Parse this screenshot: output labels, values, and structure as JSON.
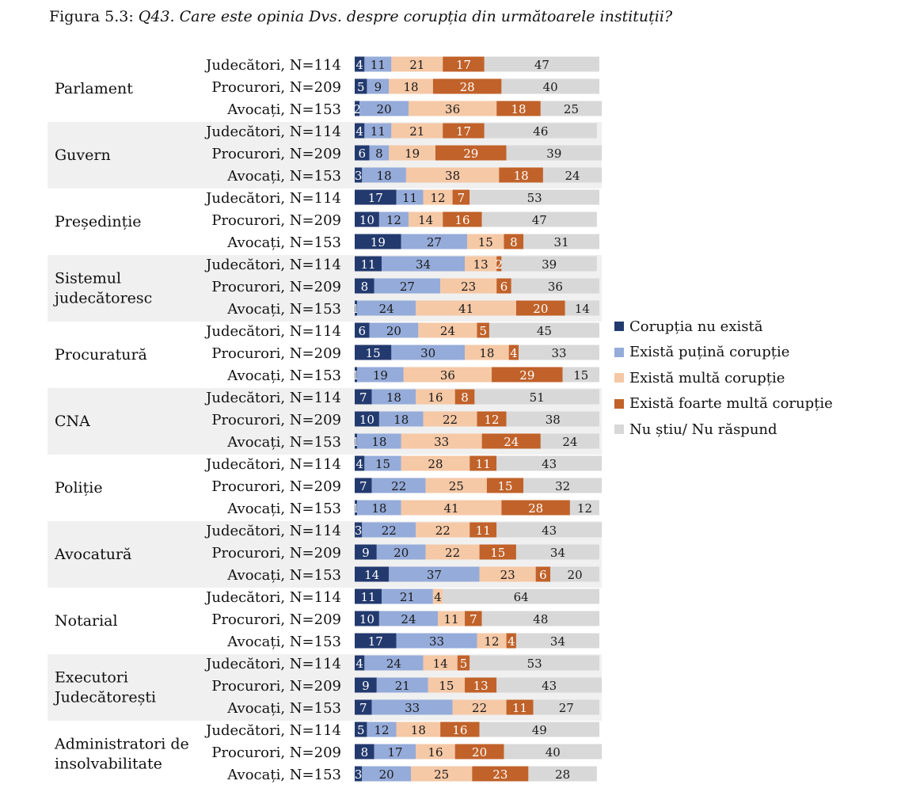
{
  "title": {
    "number": "Figura 5.3:",
    "question": "Q43. Care este opinia Dvs. despre corupția din următoarele instituții?"
  },
  "colors": [
    "#233a6e",
    "#95abd9",
    "#f5c8a6",
    "#c0622a",
    "#d8d8d8"
  ],
  "legend": [
    {
      "label": "Corupția nu există",
      "color": "#233a6e"
    },
    {
      "label": "Există puțină corupție",
      "color": "#95abd9"
    },
    {
      "label": "Există multă corupție",
      "color": "#f5c8a6"
    },
    {
      "label": "Există foarte multă corupție",
      "color": "#c0622a"
    },
    {
      "label": "Nu știu/ Nu răspund",
      "color": "#d8d8d8"
    }
  ],
  "chart_data": {
    "type": "bar",
    "orientation": "horizontal",
    "stacked": true,
    "unit": "%",
    "series_names": [
      "Corupția nu există",
      "Există puțină corupție",
      "Există multă corupție",
      "Există foarte multă corupție",
      "Nu știu/ Nu răspund"
    ],
    "groups": [
      {
        "name": [
          "Parlament"
        ],
        "rows": [
          {
            "label": "Judecători, N=114",
            "values": [
              4,
              11,
              21,
              17,
              47
            ]
          },
          {
            "label": "Procurori, N=209",
            "values": [
              5,
              9,
              18,
              28,
              40
            ]
          },
          {
            "label": "Avocați, N=153",
            "values": [
              2,
              20,
              36,
              18,
              25
            ]
          }
        ]
      },
      {
        "name": [
          "Guvern"
        ],
        "rows": [
          {
            "label": "Judecători, N=114",
            "values": [
              4,
              11,
              21,
              17,
              46
            ]
          },
          {
            "label": "Procurori, N=209",
            "values": [
              6,
              8,
              19,
              29,
              39
            ]
          },
          {
            "label": "Avocați, N=153",
            "values": [
              3,
              18,
              38,
              18,
              24
            ]
          }
        ]
      },
      {
        "name": [
          "Președinție"
        ],
        "rows": [
          {
            "label": "Judecători, N=114",
            "values": [
              17,
              11,
              12,
              7,
              53
            ]
          },
          {
            "label": "Procurori, N=209",
            "values": [
              10,
              12,
              14,
              16,
              47
            ]
          },
          {
            "label": "Avocați, N=153",
            "values": [
              19,
              27,
              15,
              8,
              31
            ]
          }
        ]
      },
      {
        "name": [
          "Sistemul",
          "judecătoresc"
        ],
        "rows": [
          {
            "label": "Judecători, N=114",
            "values": [
              11,
              34,
              13,
              2,
              39
            ]
          },
          {
            "label": "Procurori, N=209",
            "values": [
              8,
              27,
              23,
              6,
              36
            ]
          },
          {
            "label": "Avocați, N=153",
            "values": [
              1,
              24,
              41,
              20,
              14
            ]
          }
        ]
      },
      {
        "name": [
          "Procuratură"
        ],
        "rows": [
          {
            "label": "Judecători, N=114",
            "values": [
              6,
              20,
              24,
              5,
              45
            ]
          },
          {
            "label": "Procurori, N=209",
            "values": [
              15,
              30,
              18,
              4,
              33
            ]
          },
          {
            "label": "Avocați, N=153",
            "values": [
              1,
              19,
              36,
              29,
              15
            ]
          }
        ]
      },
      {
        "name": [
          "CNA"
        ],
        "rows": [
          {
            "label": "Judecători, N=114",
            "values": [
              7,
              18,
              16,
              8,
              51
            ]
          },
          {
            "label": "Procurori, N=209",
            "values": [
              10,
              18,
              22,
              12,
              38
            ]
          },
          {
            "label": "Avocați, N=153",
            "values": [
              1,
              18,
              33,
              24,
              24
            ]
          }
        ]
      },
      {
        "name": [
          "Poliție"
        ],
        "rows": [
          {
            "label": "Judecători, N=114",
            "values": [
              4,
              15,
              28,
              11,
              43
            ]
          },
          {
            "label": "Procurori, N=209",
            "values": [
              7,
              22,
              25,
              15,
              32
            ]
          },
          {
            "label": "Avocați, N=153",
            "values": [
              1,
              18,
              41,
              28,
              12
            ]
          }
        ]
      },
      {
        "name": [
          "Avocatură"
        ],
        "rows": [
          {
            "label": "Judecători, N=114",
            "values": [
              3,
              22,
              22,
              11,
              43
            ]
          },
          {
            "label": "Procurori, N=209",
            "values": [
              9,
              20,
              22,
              15,
              34
            ]
          },
          {
            "label": "Avocați, N=153",
            "values": [
              14,
              37,
              23,
              6,
              20
            ]
          }
        ]
      },
      {
        "name": [
          "Notarial"
        ],
        "rows": [
          {
            "label": "Judecători, N=114",
            "values": [
              11,
              21,
              4,
              0,
              64
            ]
          },
          {
            "label": "Procurori, N=209",
            "values": [
              10,
              24,
              11,
              7,
              48
            ]
          },
          {
            "label": "Avocați, N=153",
            "values": [
              17,
              33,
              12,
              4,
              34
            ]
          }
        ]
      },
      {
        "name": [
          "Executori",
          "Judecătorești"
        ],
        "rows": [
          {
            "label": "Judecători, N=114",
            "values": [
              4,
              24,
              14,
              5,
              53
            ]
          },
          {
            "label": "Procurori, N=209",
            "values": [
              9,
              21,
              15,
              13,
              43
            ]
          },
          {
            "label": "Avocați, N=153",
            "values": [
              7,
              33,
              22,
              11,
              27
            ]
          }
        ]
      },
      {
        "name": [
          "Administratori de",
          "insolvabilitate"
        ],
        "rows": [
          {
            "label": "Judecători, N=114",
            "values": [
              5,
              12,
              18,
              16,
              49
            ]
          },
          {
            "label": "Procurori, N=209",
            "values": [
              8,
              17,
              16,
              20,
              40
            ]
          },
          {
            "label": "Avocați, N=153",
            "values": [
              3,
              20,
              25,
              23,
              28
            ]
          }
        ]
      }
    ]
  }
}
